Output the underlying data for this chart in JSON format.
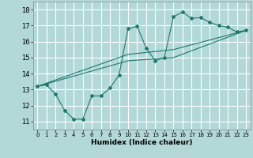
{
  "xlabel": "Humidex (Indice chaleur)",
  "xlim": [
    -0.5,
    23.5
  ],
  "ylim": [
    10.5,
    18.5
  ],
  "xticks": [
    0,
    1,
    2,
    3,
    4,
    5,
    6,
    7,
    8,
    9,
    10,
    11,
    12,
    13,
    14,
    15,
    16,
    17,
    18,
    19,
    20,
    21,
    22,
    23
  ],
  "yticks": [
    11,
    12,
    13,
    14,
    15,
    16,
    17,
    18
  ],
  "bg_color": "#b2d8d8",
  "grid_color": "#ffffff",
  "line_color": "#1a7a6e",
  "line1_x": [
    0,
    1,
    2,
    3,
    4,
    5,
    6,
    7,
    8,
    9,
    10,
    11,
    12,
    13,
    14,
    15,
    16,
    17,
    18,
    19,
    20,
    21,
    22,
    23
  ],
  "line1_y": [
    13.2,
    13.3,
    12.7,
    11.7,
    11.15,
    11.15,
    12.6,
    12.6,
    13.1,
    13.9,
    16.8,
    16.95,
    15.6,
    14.8,
    15.0,
    17.55,
    17.85,
    17.45,
    17.5,
    17.2,
    17.0,
    16.9,
    16.6,
    16.7
  ],
  "line2_x": [
    0,
    23
  ],
  "line2_y": [
    13.2,
    16.7
  ],
  "line3_x": [
    0,
    23
  ],
  "line3_y": [
    13.2,
    16.7
  ],
  "ref_line1_x": [
    0,
    10,
    15,
    23
  ],
  "ref_line1_y": [
    13.2,
    14.8,
    15.0,
    16.7
  ],
  "ref_line2_x": [
    0,
    10,
    15,
    23
  ],
  "ref_line2_y": [
    13.2,
    15.2,
    15.5,
    16.7
  ]
}
